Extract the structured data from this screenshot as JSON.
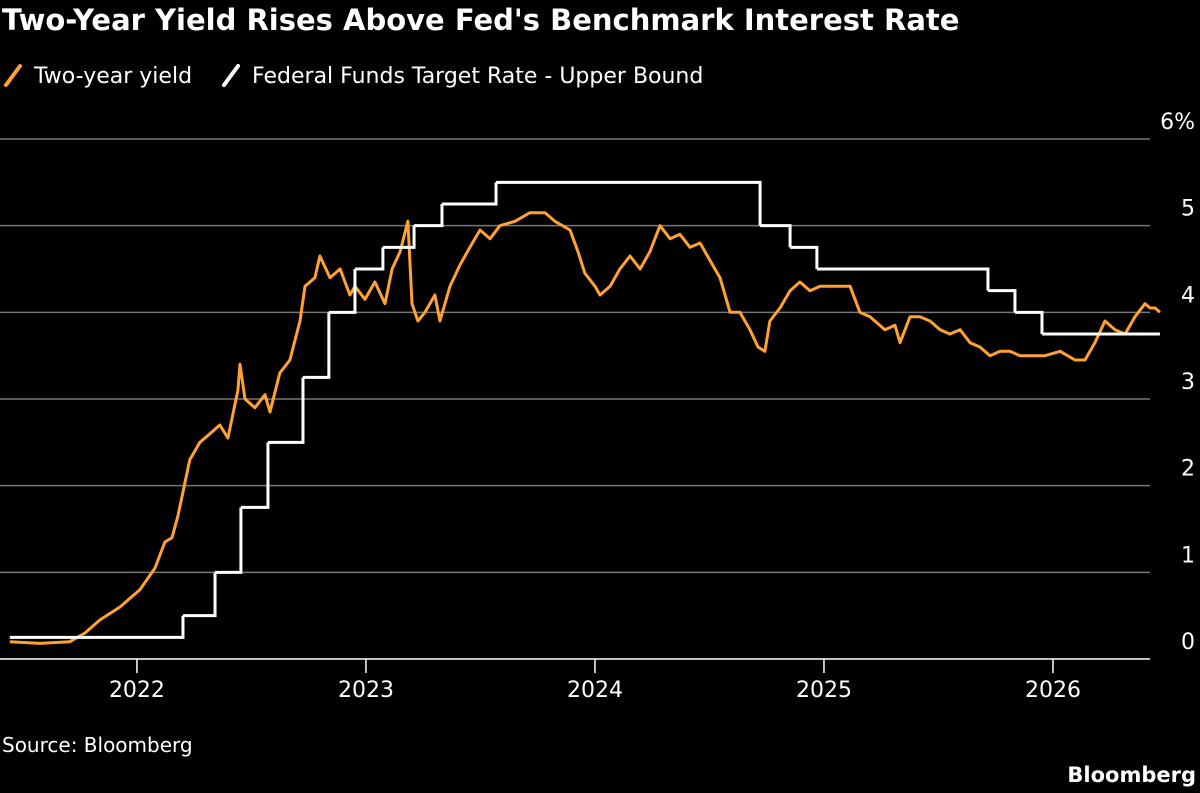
{
  "chart_data": {
    "type": "line",
    "title": "Two-Year Yield Rises Above Fed's Benchmark Interest Rate",
    "source": "Source: Bloomberg",
    "brand": "Bloomberg",
    "xlim": [
      2021.402,
      2026.642
    ],
    "xticks": [
      2022,
      2023,
      2024,
      2025,
      2026
    ],
    "ylim": [
      0,
      6
    ],
    "yticks": [
      0,
      1,
      2,
      3,
      4,
      5,
      {
        "value": 6,
        "label": "6%"
      }
    ],
    "grid": true,
    "series": [
      {
        "name": "Two-year yield",
        "color": "#ffa133",
        "drawstyle": "line",
        "x": [
          2021.445,
          2021.576,
          2021.707,
          2021.773,
          2021.838,
          2021.926,
          2022.013,
          2022.079,
          2022.122,
          2022.153,
          2022.179,
          2022.231,
          2022.275,
          2022.319,
          2022.362,
          2022.397,
          2022.441,
          2022.45,
          2022.472,
          2022.515,
          2022.559,
          2022.581,
          2022.624,
          2022.668,
          2022.712,
          2022.734,
          2022.777,
          2022.799,
          2022.843,
          2022.887,
          2022.93,
          2022.952,
          2022.996,
          2023.039,
          2023.083,
          2023.114,
          2023.149,
          2023.183,
          2023.201,
          2023.227,
          2023.258,
          2023.301,
          2023.323,
          2023.367,
          2023.411,
          2023.454,
          2023.498,
          2023.542,
          2023.585,
          2023.651,
          2023.716,
          2023.782,
          2023.825,
          2023.891,
          2023.926,
          2023.956,
          2024.0,
          2024.022,
          2024.066,
          2024.109,
          2024.153,
          2024.197,
          2024.24,
          2024.284,
          2024.328,
          2024.371,
          2024.415,
          2024.459,
          2024.502,
          2024.546,
          2024.59,
          2024.633,
          2024.677,
          2024.712,
          2024.742,
          2024.764,
          2024.808,
          2024.852,
          2024.895,
          2024.939,
          2024.983,
          2025.048,
          2025.114,
          2025.157,
          2025.201,
          2025.266,
          2025.31,
          2025.332,
          2025.376,
          2025.419,
          2025.463,
          2025.507,
          2025.55,
          2025.594,
          2025.638,
          2025.681,
          2025.725,
          2025.769,
          2025.812,
          2025.856,
          2025.9,
          2025.965,
          2026.031,
          2026.096,
          2026.14,
          2026.183,
          2026.227,
          2026.271,
          2026.315,
          2026.358,
          2026.402,
          2026.424,
          2026.446,
          2026.467
        ],
        "values": [
          0.2,
          0.18,
          0.2,
          0.3,
          0.45,
          0.6,
          0.8,
          1.05,
          1.35,
          1.4,
          1.65,
          2.3,
          2.5,
          2.6,
          2.7,
          2.55,
          3.1,
          3.4,
          3.0,
          2.9,
          3.05,
          2.85,
          3.3,
          3.45,
          3.9,
          4.3,
          4.4,
          4.65,
          4.4,
          4.5,
          4.2,
          4.3,
          4.15,
          4.35,
          4.1,
          4.5,
          4.7,
          5.05,
          4.1,
          3.9,
          4.0,
          4.2,
          3.9,
          4.3,
          4.55,
          4.75,
          4.95,
          4.85,
          5.0,
          5.05,
          5.15,
          5.15,
          5.05,
          4.95,
          4.7,
          4.45,
          4.3,
          4.2,
          4.3,
          4.5,
          4.65,
          4.5,
          4.7,
          5.0,
          4.85,
          4.9,
          4.75,
          4.8,
          4.6,
          4.4,
          4.0,
          4.0,
          3.8,
          3.6,
          3.55,
          3.9,
          4.05,
          4.25,
          4.35,
          4.25,
          4.3,
          4.3,
          4.3,
          4.0,
          3.95,
          3.8,
          3.85,
          3.65,
          3.95,
          3.95,
          3.9,
          3.8,
          3.75,
          3.8,
          3.65,
          3.6,
          3.5,
          3.55,
          3.55,
          3.5,
          3.5,
          3.5,
          3.55,
          3.45,
          3.45,
          3.65,
          3.9,
          3.8,
          3.75,
          3.95,
          4.1,
          4.05,
          4.05,
          4.0
        ]
      },
      {
        "name": "Federal Funds Target Rate - Upper Bound",
        "color": "#ffffff",
        "drawstyle": "steps-post",
        "x": [
          2021.445,
          2022.201,
          2022.341,
          2022.454,
          2022.572,
          2022.725,
          2022.838,
          2022.952,
          2023.074,
          2023.21,
          2023.332,
          2023.568,
          2024.721,
          2024.852,
          2024.969,
          2025.716,
          2025.834,
          2025.952,
          2026.467
        ],
        "values": [
          0.25,
          0.5,
          1.0,
          1.75,
          2.5,
          3.25,
          4.0,
          4.5,
          4.75,
          5.0,
          5.25,
          5.5,
          5.0,
          4.75,
          4.5,
          4.25,
          4.0,
          3.75,
          3.75
        ]
      }
    ]
  }
}
